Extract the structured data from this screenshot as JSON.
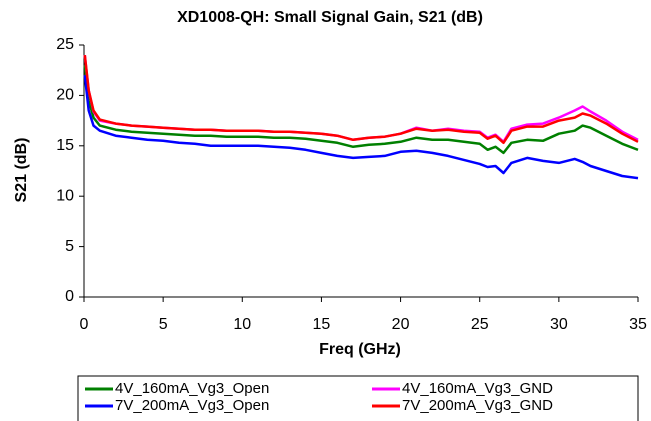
{
  "chart_data": {
    "type": "line",
    "title": "XD1008-QH: Small Signal Gain, S21 (dB)",
    "x_label": "Freq (GHz)",
    "y_label": "S21 (dB)",
    "x": [
      0.05,
      0.3,
      0.6,
      1,
      2,
      3,
      4,
      5,
      6,
      7,
      8,
      9,
      10,
      11,
      12,
      13,
      14,
      15,
      16,
      17,
      18,
      19,
      20,
      21,
      22,
      23,
      24,
      25,
      25.5,
      26,
      26.5,
      27,
      28,
      29,
      30,
      31,
      31.5,
      32,
      33,
      34,
      35
    ],
    "series": [
      {
        "name": "4V_160mA_Vg3_Open",
        "color": "#008000",
        "values": [
          23,
          19.5,
          17.8,
          17,
          16.6,
          16.4,
          16.3,
          16.2,
          16.1,
          16,
          16,
          15.9,
          15.9,
          15.9,
          15.8,
          15.8,
          15.7,
          15.5,
          15.3,
          14.9,
          15.1,
          15.2,
          15.4,
          15.8,
          15.6,
          15.6,
          15.4,
          15.2,
          14.6,
          14.9,
          14.3,
          15.3,
          15.6,
          15.5,
          16.2,
          16.5,
          17,
          16.8,
          16,
          15.2,
          14.6
        ]
      },
      {
        "name": "4V_160mA_Vg3_GND",
        "color": "#ff00ff",
        "values": [
          24,
          20.5,
          18.4,
          17.5,
          17.2,
          17,
          16.9,
          16.8,
          16.7,
          16.6,
          16.6,
          16.5,
          16.5,
          16.5,
          16.4,
          16.4,
          16.3,
          16.2,
          16,
          15.6,
          15.8,
          15.9,
          16.2,
          16.8,
          16.5,
          16.7,
          16.5,
          16.4,
          15.8,
          16.1,
          15.4,
          16.7,
          17.1,
          17.2,
          17.8,
          18.5,
          18.9,
          18.4,
          17.5,
          16.4,
          15.6
        ]
      },
      {
        "name": "7V_200mA_Vg3_Open",
        "color": "#0000ff",
        "values": [
          22,
          18.5,
          17,
          16.5,
          16,
          15.8,
          15.6,
          15.5,
          15.3,
          15.2,
          15,
          15,
          15,
          15,
          14.9,
          14.8,
          14.6,
          14.3,
          14,
          13.8,
          13.9,
          14,
          14.4,
          14.5,
          14.3,
          14,
          13.6,
          13.2,
          12.9,
          13,
          12.3,
          13.3,
          13.8,
          13.5,
          13.3,
          13.7,
          13.4,
          13,
          12.5,
          12,
          11.8
        ]
      },
      {
        "name": "7V_200mA_Vg3_GND",
        "color": "#ff0000",
        "values": [
          24,
          20.5,
          18.5,
          17.6,
          17.2,
          17,
          16.9,
          16.8,
          16.7,
          16.6,
          16.6,
          16.5,
          16.5,
          16.5,
          16.4,
          16.4,
          16.3,
          16.2,
          16,
          15.6,
          15.8,
          15.9,
          16.2,
          16.7,
          16.5,
          16.6,
          16.4,
          16.3,
          15.7,
          16,
          15.3,
          16.5,
          16.9,
          16.9,
          17.5,
          17.8,
          18.2,
          18,
          17.2,
          16.2,
          15.4
        ]
      }
    ],
    "xlim": [
      0,
      35
    ],
    "xticks": [
      0,
      5,
      10,
      15,
      20,
      25,
      30,
      35
    ],
    "ylim": [
      0,
      25
    ],
    "yticks": [
      0,
      5,
      10,
      15,
      20,
      25
    ],
    "grid": false,
    "legend": "bottom"
  }
}
